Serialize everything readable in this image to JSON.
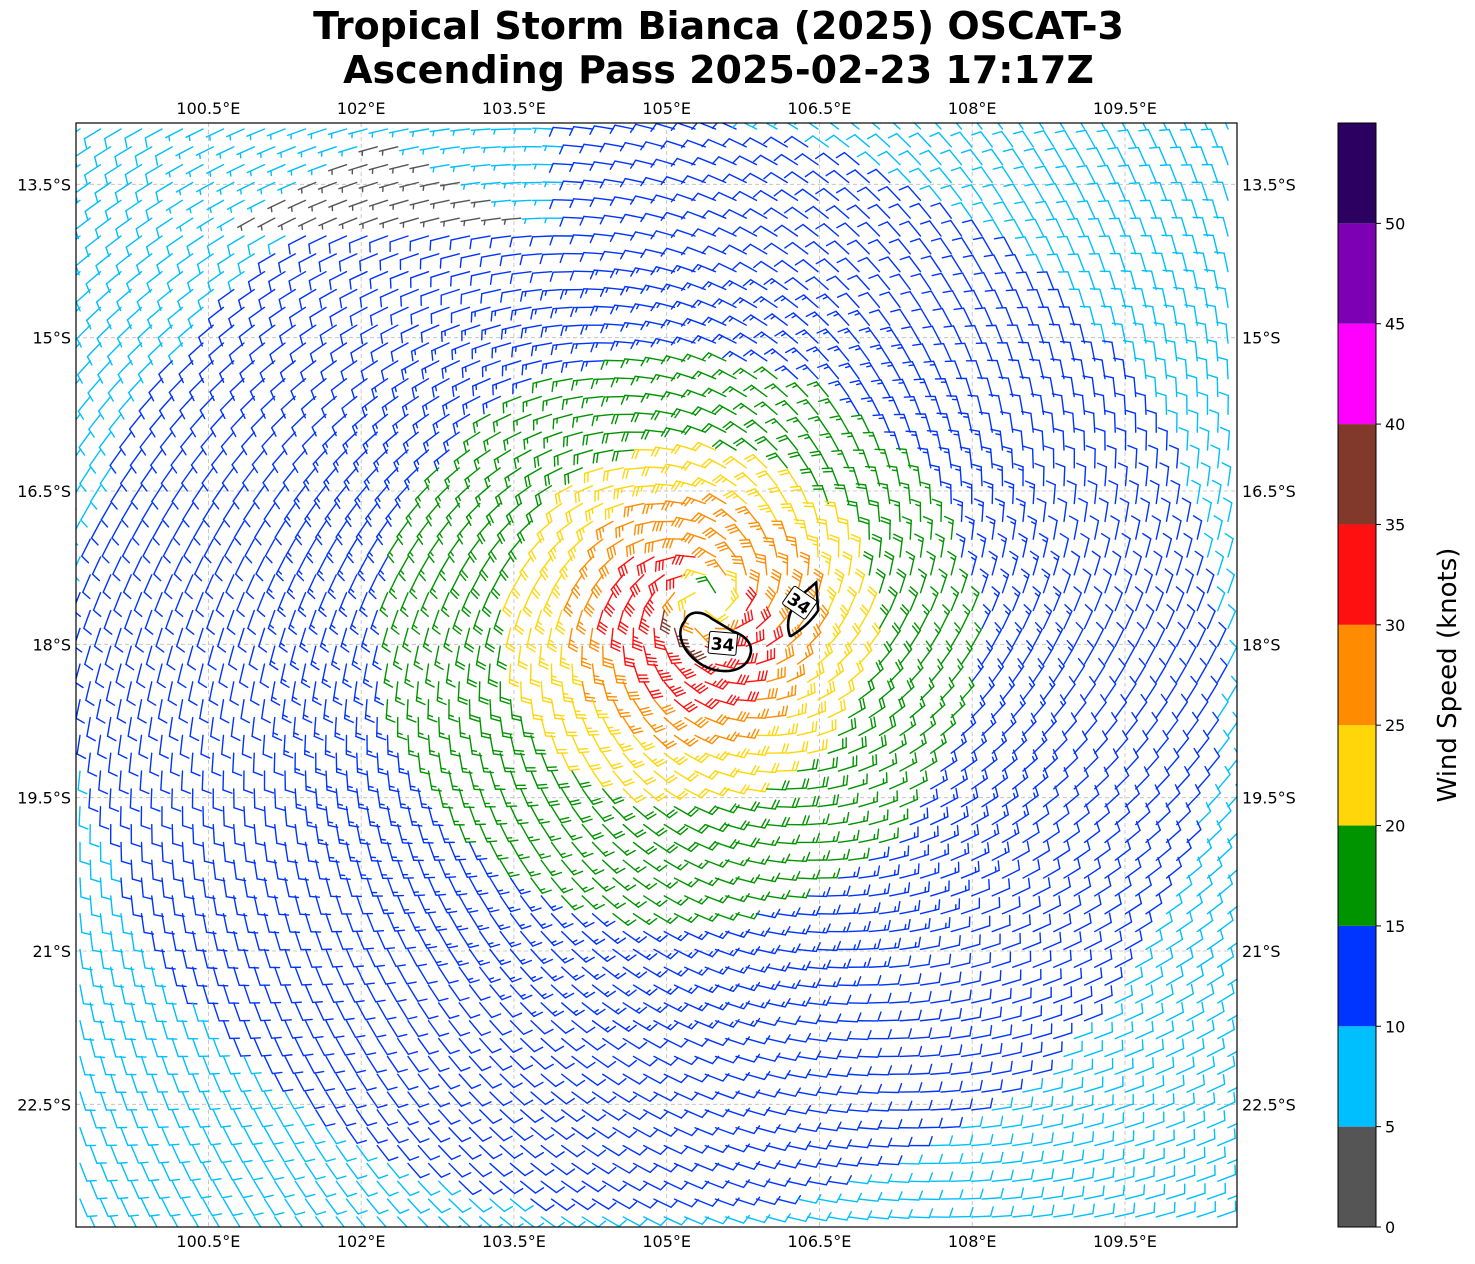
{
  "title": {
    "line1": "Tropical Storm Bianca (2025) OSCAT-3",
    "line2": "Ascending Pass 2025-02-23 17:17Z"
  },
  "map": {
    "lon_range": [
      99.2,
      110.6
    ],
    "lat_range": [
      -23.7,
      -12.9
    ],
    "lon_ticks": [
      {
        "value": 100.5,
        "label": "100.5°E"
      },
      {
        "value": 102.0,
        "label": "102°E"
      },
      {
        "value": 103.5,
        "label": "103.5°E"
      },
      {
        "value": 105.0,
        "label": "105°E"
      },
      {
        "value": 106.5,
        "label": "106.5°E"
      },
      {
        "value": 108.0,
        "label": "108°E"
      },
      {
        "value": 109.5,
        "label": "109.5°E"
      }
    ],
    "lat_ticks": [
      {
        "value": -13.5,
        "label": "13.5°S"
      },
      {
        "value": -15.0,
        "label": "15°S"
      },
      {
        "value": -16.5,
        "label": "16.5°S"
      },
      {
        "value": -18.0,
        "label": "18°S"
      },
      {
        "value": -19.5,
        "label": "19.5°S"
      },
      {
        "value": -21.0,
        "label": "21°S"
      },
      {
        "value": -22.5,
        "label": "22.5°S"
      }
    ],
    "grid": true,
    "storm_center": {
      "lon": 105.4,
      "lat": -17.6
    },
    "contour_34kt": {
      "label": "34",
      "label_positions": [
        {
          "lon": 105.55,
          "lat": -18.0,
          "angle": 5
        },
        {
          "lon": 106.3,
          "lat": -17.6,
          "angle": 35
        }
      ]
    }
  },
  "colorbar": {
    "title": "Wind Speed (knots)",
    "bins": [
      {
        "min": 0,
        "max": 5,
        "color": "#555555"
      },
      {
        "min": 5,
        "max": 10,
        "color": "#00bfff"
      },
      {
        "min": 10,
        "max": 15,
        "color": "#0034ff"
      },
      {
        "min": 15,
        "max": 20,
        "color": "#009400"
      },
      {
        "min": 20,
        "max": 25,
        "color": "#ffd60a"
      },
      {
        "min": 25,
        "max": 30,
        "color": "#ff8c00"
      },
      {
        "min": 30,
        "max": 35,
        "color": "#ff1010"
      },
      {
        "min": 35,
        "max": 40,
        "color": "#80392b"
      },
      {
        "min": 40,
        "max": 45,
        "color": "#ff00ff"
      },
      {
        "min": 45,
        "max": 50,
        "color": "#7d00b5"
      },
      {
        "min": 50,
        "max": 55,
        "color": "#2b0060"
      }
    ],
    "tick_labels": [
      "0",
      "5",
      "10",
      "15",
      "20",
      "25",
      "30",
      "35",
      "40",
      "45",
      "50"
    ]
  }
}
